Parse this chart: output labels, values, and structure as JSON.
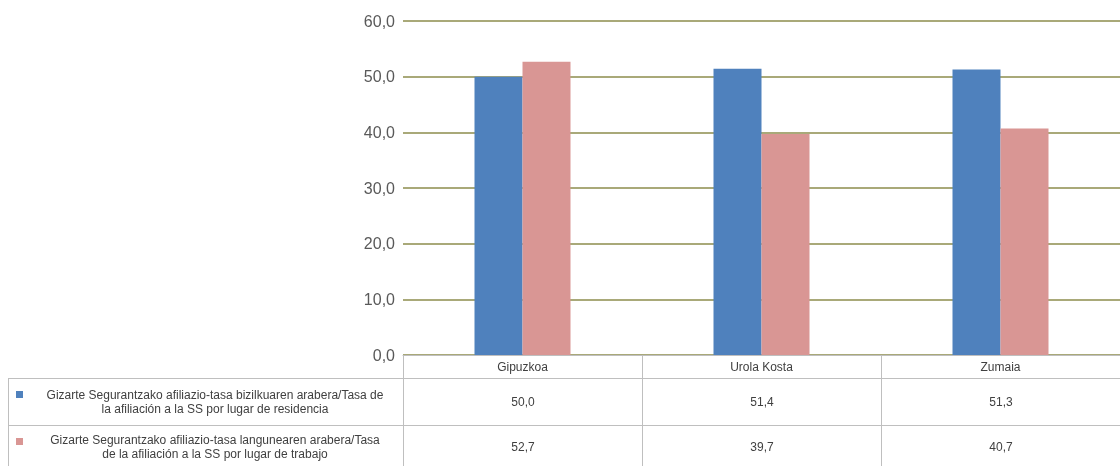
{
  "chart_data": {
    "type": "bar",
    "categories": [
      "Gipuzkoa",
      "Urola Kosta",
      "Zumaia"
    ],
    "series": [
      {
        "name": "Gizarte Segurantzako afiliazio-tasa bizilkuaren arabera/Tasa de la afiliación a la SS por lugar de residencia",
        "color": "#4f81bd",
        "values": [
          50.0,
          51.4,
          51.3
        ],
        "value_labels": [
          "50,0",
          "51,4",
          "51,3"
        ]
      },
      {
        "name": "Gizarte Segurantzako afiliazio-tasa langunearen arabera/Tasa de la afiliación a la SS por lugar de trabajo",
        "color": "#d99694",
        "values": [
          52.7,
          39.7,
          40.7
        ],
        "value_labels": [
          "52,7",
          "39,7",
          "40,7"
        ]
      }
    ],
    "ylim": [
      0,
      60
    ],
    "yticks": [
      {
        "value": 0,
        "label": "0,0"
      },
      {
        "value": 10,
        "label": "10,0"
      },
      {
        "value": 20,
        "label": "20,0"
      },
      {
        "value": 30,
        "label": "30,0"
      },
      {
        "value": 40,
        "label": "40,0"
      },
      {
        "value": 50,
        "label": "50,0"
      },
      {
        "value": 60,
        "label": "60,0"
      }
    ],
    "grid": "y",
    "legend": "bottom"
  }
}
